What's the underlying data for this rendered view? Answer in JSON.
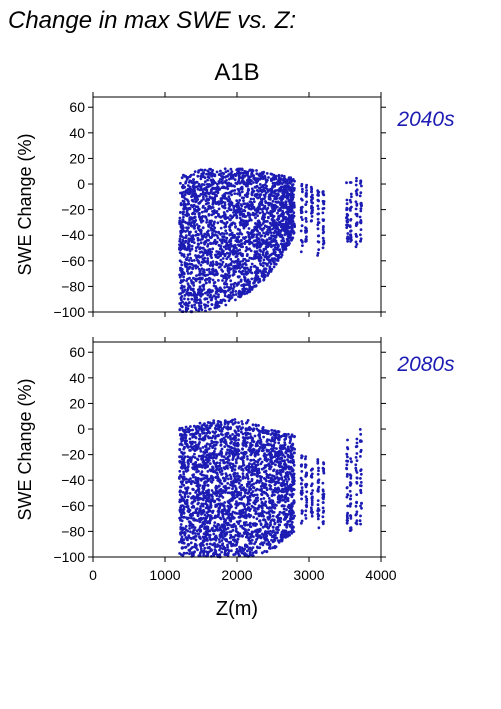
{
  "figure": {
    "title": "Change in max SWE vs. Z:",
    "scenario": "A1B",
    "colors": {
      "points": "#1c1cb4",
      "period_label": "#1c1cb4",
      "frame": "#000000"
    }
  },
  "chart_data": [
    {
      "type": "scatter",
      "period": "2040s",
      "title": "A1B",
      "xlabel": "",
      "ylabel": "SWE Change (%)",
      "xlim": [
        0,
        4000
      ],
      "ylim": [
        -100,
        68
      ],
      "xticks": [
        0,
        1000,
        2000,
        3000,
        4000
      ],
      "yticks": [
        -100,
        -80,
        -60,
        -40,
        -20,
        0,
        20,
        40,
        60
      ],
      "ytick_labels": [
        "−100",
        "−80",
        "−60",
        "−40",
        "−20",
        "0",
        "20",
        "40",
        "60"
      ],
      "show_xtick_labels": false,
      "grid": false,
      "point_clusters": [
        {
          "x_range": [
            1200,
            2800
          ],
          "y_top": [
            6,
            12,
            12,
            12,
            8,
            5
          ],
          "y_bottom": [
            -100,
            -100,
            -95,
            -85,
            -70,
            -40
          ]
        },
        {
          "x": 2900,
          "y_range": [
            -55,
            2
          ]
        },
        {
          "x": 2960,
          "y_range": [
            -45,
            0
          ]
        },
        {
          "x": 3040,
          "y_range": [
            -30,
            -2
          ]
        },
        {
          "x": 3130,
          "y_range": [
            -60,
            -5
          ]
        },
        {
          "x": 3200,
          "y_range": [
            -50,
            -5
          ]
        },
        {
          "x": 3530,
          "y_range": [
            -45,
            2
          ]
        },
        {
          "x": 3580,
          "y_range": [
            -45,
            2
          ]
        },
        {
          "x": 3660,
          "y_range": [
            -50,
            5
          ]
        },
        {
          "x": 3720,
          "y_range": [
            -45,
            5
          ]
        }
      ]
    },
    {
      "type": "scatter",
      "period": "2080s",
      "xlabel": "Z(m)",
      "ylabel": "SWE Change (%)",
      "xlim": [
        0,
        4000
      ],
      "ylim": [
        -100,
        68
      ],
      "xticks": [
        0,
        1000,
        2000,
        3000,
        4000
      ],
      "xtick_labels": [
        "0",
        "1000",
        "2000",
        "3000",
        "4000"
      ],
      "yticks": [
        -100,
        -80,
        -60,
        -40,
        -20,
        0,
        20,
        40,
        60
      ],
      "ytick_labels": [
        "−100",
        "−80",
        "−60",
        "−40",
        "−20",
        "0",
        "20",
        "40",
        "60"
      ],
      "grid": false,
      "point_clusters": [
        {
          "x_range": [
            1200,
            2800
          ],
          "y_top": [
            2,
            5,
            8,
            7,
            0,
            -5
          ],
          "y_bottom": [
            -100,
            -100,
            -100,
            -100,
            -95,
            -80
          ]
        },
        {
          "x": 2900,
          "y_range": [
            -80,
            -20
          ]
        },
        {
          "x": 2960,
          "y_range": [
            -70,
            -20
          ]
        },
        {
          "x": 3040,
          "y_range": [
            -70,
            -30
          ]
        },
        {
          "x": 3130,
          "y_range": [
            -85,
            -20
          ]
        },
        {
          "x": 3200,
          "y_range": [
            -75,
            -25
          ]
        },
        {
          "x": 3530,
          "y_range": [
            -75,
            -5
          ]
        },
        {
          "x": 3580,
          "y_range": [
            -80,
            -20
          ]
        },
        {
          "x": 3660,
          "y_range": [
            -75,
            -5
          ]
        },
        {
          "x": 3720,
          "y_range": [
            -75,
            0
          ]
        }
      ]
    }
  ]
}
